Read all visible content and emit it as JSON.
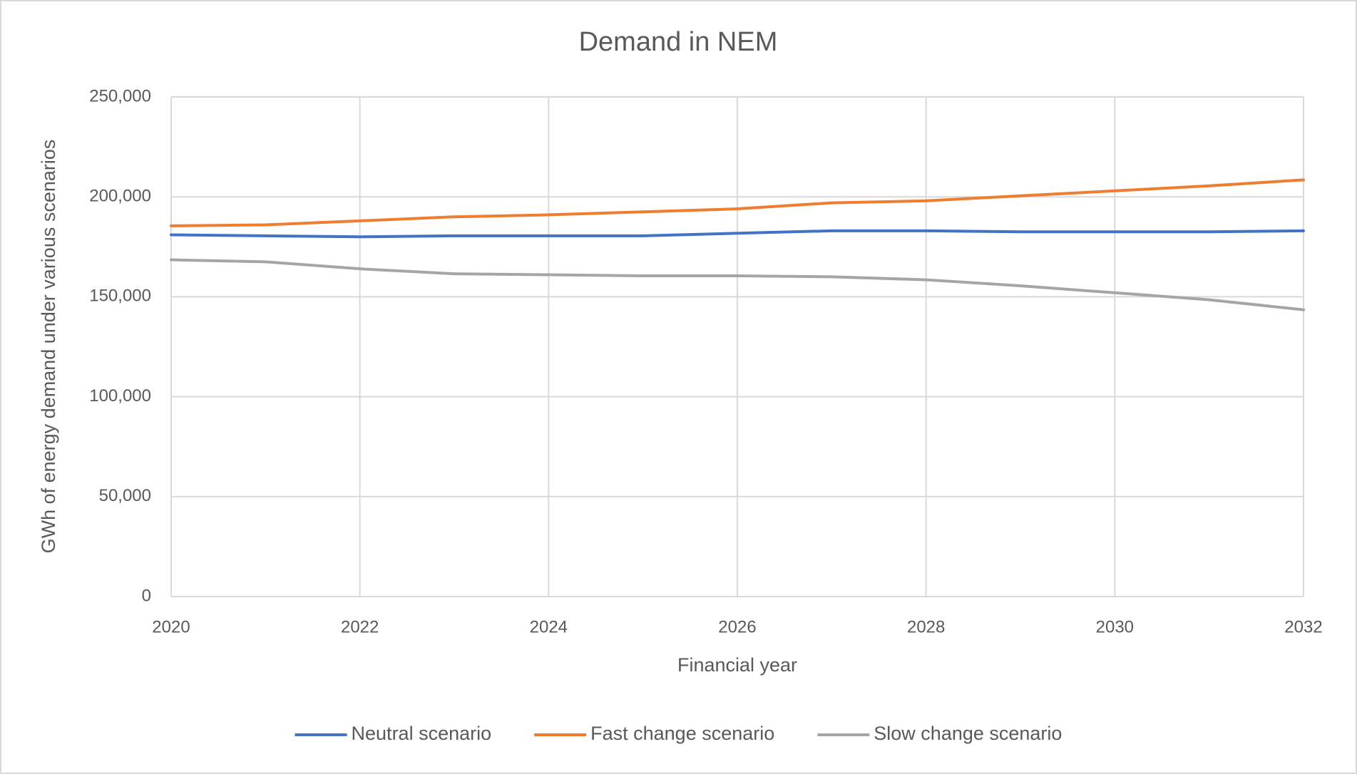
{
  "chart_data": {
    "type": "line",
    "title": "Demand in NEM",
    "x_label": "Financial year",
    "y_label": "GWh of energy demand under various scenarios",
    "x": [
      2020,
      2021,
      2022,
      2023,
      2024,
      2025,
      2026,
      2027,
      2028,
      2029,
      2030,
      2031,
      2032
    ],
    "series": [
      {
        "name": "Neutral scenario",
        "color": "#4472c4",
        "values": [
          181000,
          180500,
          180000,
          180500,
          180500,
          180500,
          181800,
          183000,
          183000,
          182500,
          182500,
          182500,
          183000
        ]
      },
      {
        "name": "Fast change scenario",
        "color": "#ed7d31",
        "values": [
          185500,
          186000,
          188000,
          190000,
          191000,
          192500,
          194000,
          197000,
          198000,
          200500,
          203000,
          205500,
          208500
        ]
      },
      {
        "name": "Slow change scenario",
        "color": "#a5a5a5",
        "values": [
          168500,
          167500,
          164000,
          161500,
          161000,
          160500,
          160500,
          160000,
          158500,
          155500,
          152000,
          148500,
          143500
        ]
      }
    ],
    "xlim": [
      2020,
      2032
    ],
    "xticks": [
      2020,
      2022,
      2024,
      2026,
      2028,
      2030,
      2032
    ],
    "ylim": [
      0,
      250000
    ],
    "yticks": [
      0,
      {
        "value": 50000,
        "label": "50,000"
      },
      {
        "value": 100000,
        "label": "100,000"
      },
      {
        "value": 150000,
        "label": "150,000"
      },
      {
        "value": 200000,
        "label": "200,000"
      },
      {
        "value": 250000,
        "label": "250,000"
      }
    ],
    "grid": true,
    "legend": "bottom"
  }
}
